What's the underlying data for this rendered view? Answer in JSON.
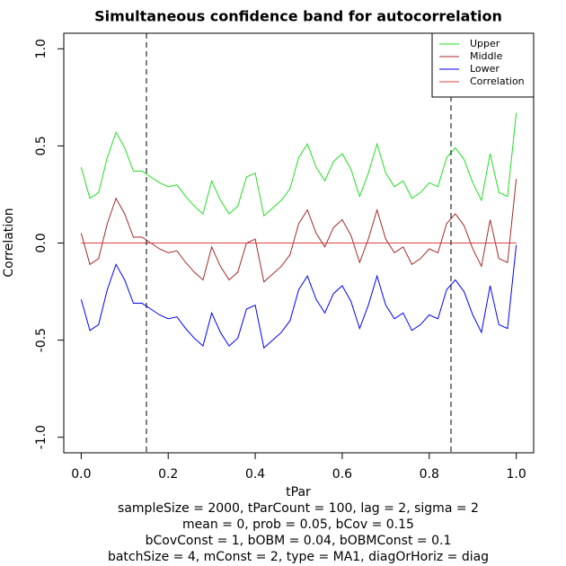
{
  "chart_data": {
    "type": "line",
    "title": "Simultaneous confidence band for autocorrelation",
    "subtitle": [
      "sampleSize = 2000, tParCount = 100, lag = 2, sigma = 2",
      "mean = 0, prob = 0.05, bCov = 0.15",
      "bCovConst = 1, bOBM = 0.04, bOBMConst = 0.1",
      "batchSize = 4, mConst = 2, type = MA1, diagOrHoriz = diag"
    ],
    "x_label": "tPar",
    "y_label": "Correlation",
    "x": [
      0,
      0.02,
      0.04,
      0.06,
      0.08,
      0.1,
      0.12,
      0.14,
      0.16,
      0.18,
      0.2,
      0.22,
      0.24,
      0.26,
      0.28,
      0.3,
      0.32,
      0.34,
      0.36,
      0.38,
      0.4,
      0.42,
      0.44,
      0.46,
      0.48,
      0.5,
      0.52,
      0.54,
      0.56,
      0.58,
      0.6,
      0.62,
      0.64,
      0.66,
      0.68,
      0.7,
      0.72,
      0.74,
      0.76,
      0.78,
      0.8,
      0.82,
      0.84,
      0.86,
      0.88,
      0.9,
      0.92,
      0.94,
      0.96,
      0.98,
      1
    ],
    "series": [
      {
        "name": "Upper",
        "color": "#22dd22",
        "values": [
          0.39,
          0.23,
          0.26,
          0.44,
          0.57,
          0.49,
          0.37,
          0.37,
          0.34,
          0.31,
          0.29,
          0.3,
          0.24,
          0.19,
          0.15,
          0.32,
          0.22,
          0.15,
          0.19,
          0.34,
          0.36,
          0.14,
          0.18,
          0.22,
          0.28,
          0.44,
          0.51,
          0.39,
          0.32,
          0.42,
          0.46,
          0.38,
          0.24,
          0.36,
          0.51,
          0.36,
          0.29,
          0.32,
          0.23,
          0.26,
          0.31,
          0.29,
          0.44,
          0.49,
          0.43,
          0.31,
          0.22,
          0.46,
          0.26,
          0.24,
          0.67
        ]
      },
      {
        "name": "Middle",
        "color": "#a52a2a",
        "values": [
          0.05,
          -0.11,
          -0.08,
          0.1,
          0.23,
          0.15,
          0.03,
          0.03,
          0.0,
          -0.03,
          -0.05,
          -0.04,
          -0.1,
          -0.15,
          -0.19,
          -0.02,
          -0.12,
          -0.19,
          -0.15,
          0.0,
          0.02,
          -0.2,
          -0.16,
          -0.12,
          -0.06,
          0.1,
          0.17,
          0.05,
          -0.02,
          0.08,
          0.12,
          0.04,
          -0.1,
          0.02,
          0.17,
          0.02,
          -0.05,
          -0.02,
          -0.11,
          -0.08,
          -0.03,
          -0.05,
          0.1,
          0.15,
          0.09,
          -0.03,
          -0.12,
          0.12,
          -0.08,
          -0.1,
          0.33
        ]
      },
      {
        "name": "Lower",
        "color": "#0000ff",
        "values": [
          -0.29,
          -0.45,
          -0.42,
          -0.24,
          -0.11,
          -0.19,
          -0.31,
          -0.31,
          -0.34,
          -0.37,
          -0.39,
          -0.38,
          -0.44,
          -0.49,
          -0.53,
          -0.36,
          -0.46,
          -0.53,
          -0.49,
          -0.34,
          -0.32,
          -0.54,
          -0.5,
          -0.46,
          -0.4,
          -0.24,
          -0.17,
          -0.29,
          -0.36,
          -0.26,
          -0.22,
          -0.3,
          -0.44,
          -0.32,
          -0.17,
          -0.32,
          -0.39,
          -0.36,
          -0.45,
          -0.42,
          -0.37,
          -0.39,
          -0.24,
          -0.19,
          -0.25,
          -0.37,
          -0.46,
          -0.22,
          -0.42,
          -0.44,
          -0.01
        ]
      },
      {
        "name": "Correlation",
        "color": "#d94040",
        "values": [
          0,
          0,
          0,
          0,
          0,
          0,
          0,
          0,
          0,
          0,
          0,
          0,
          0,
          0,
          0,
          0,
          0,
          0,
          0,
          0,
          0,
          0,
          0,
          0,
          0,
          0,
          0,
          0,
          0,
          0,
          0,
          0,
          0,
          0,
          0,
          0,
          0,
          0,
          0,
          0,
          0,
          0,
          0,
          0,
          0,
          0,
          0,
          0,
          0,
          0,
          0
        ]
      }
    ],
    "vlines": [
      0.15,
      0.85
    ],
    "xlim": [
      -0.04,
      1.04
    ],
    "ylim": [
      -1.08,
      1.08
    ],
    "xticks": [
      {
        "value": 0,
        "label": "0.0"
      },
      0.2,
      0.4,
      0.6,
      0.8,
      {
        "value": 1,
        "label": "1.0"
      }
    ],
    "yticks": [
      {
        "value": -1,
        "label": "-1.0"
      },
      -0.5,
      {
        "value": 0,
        "label": "0.0"
      },
      0.5,
      {
        "value": 1,
        "label": "1.0"
      }
    ],
    "legend": "top-right"
  }
}
